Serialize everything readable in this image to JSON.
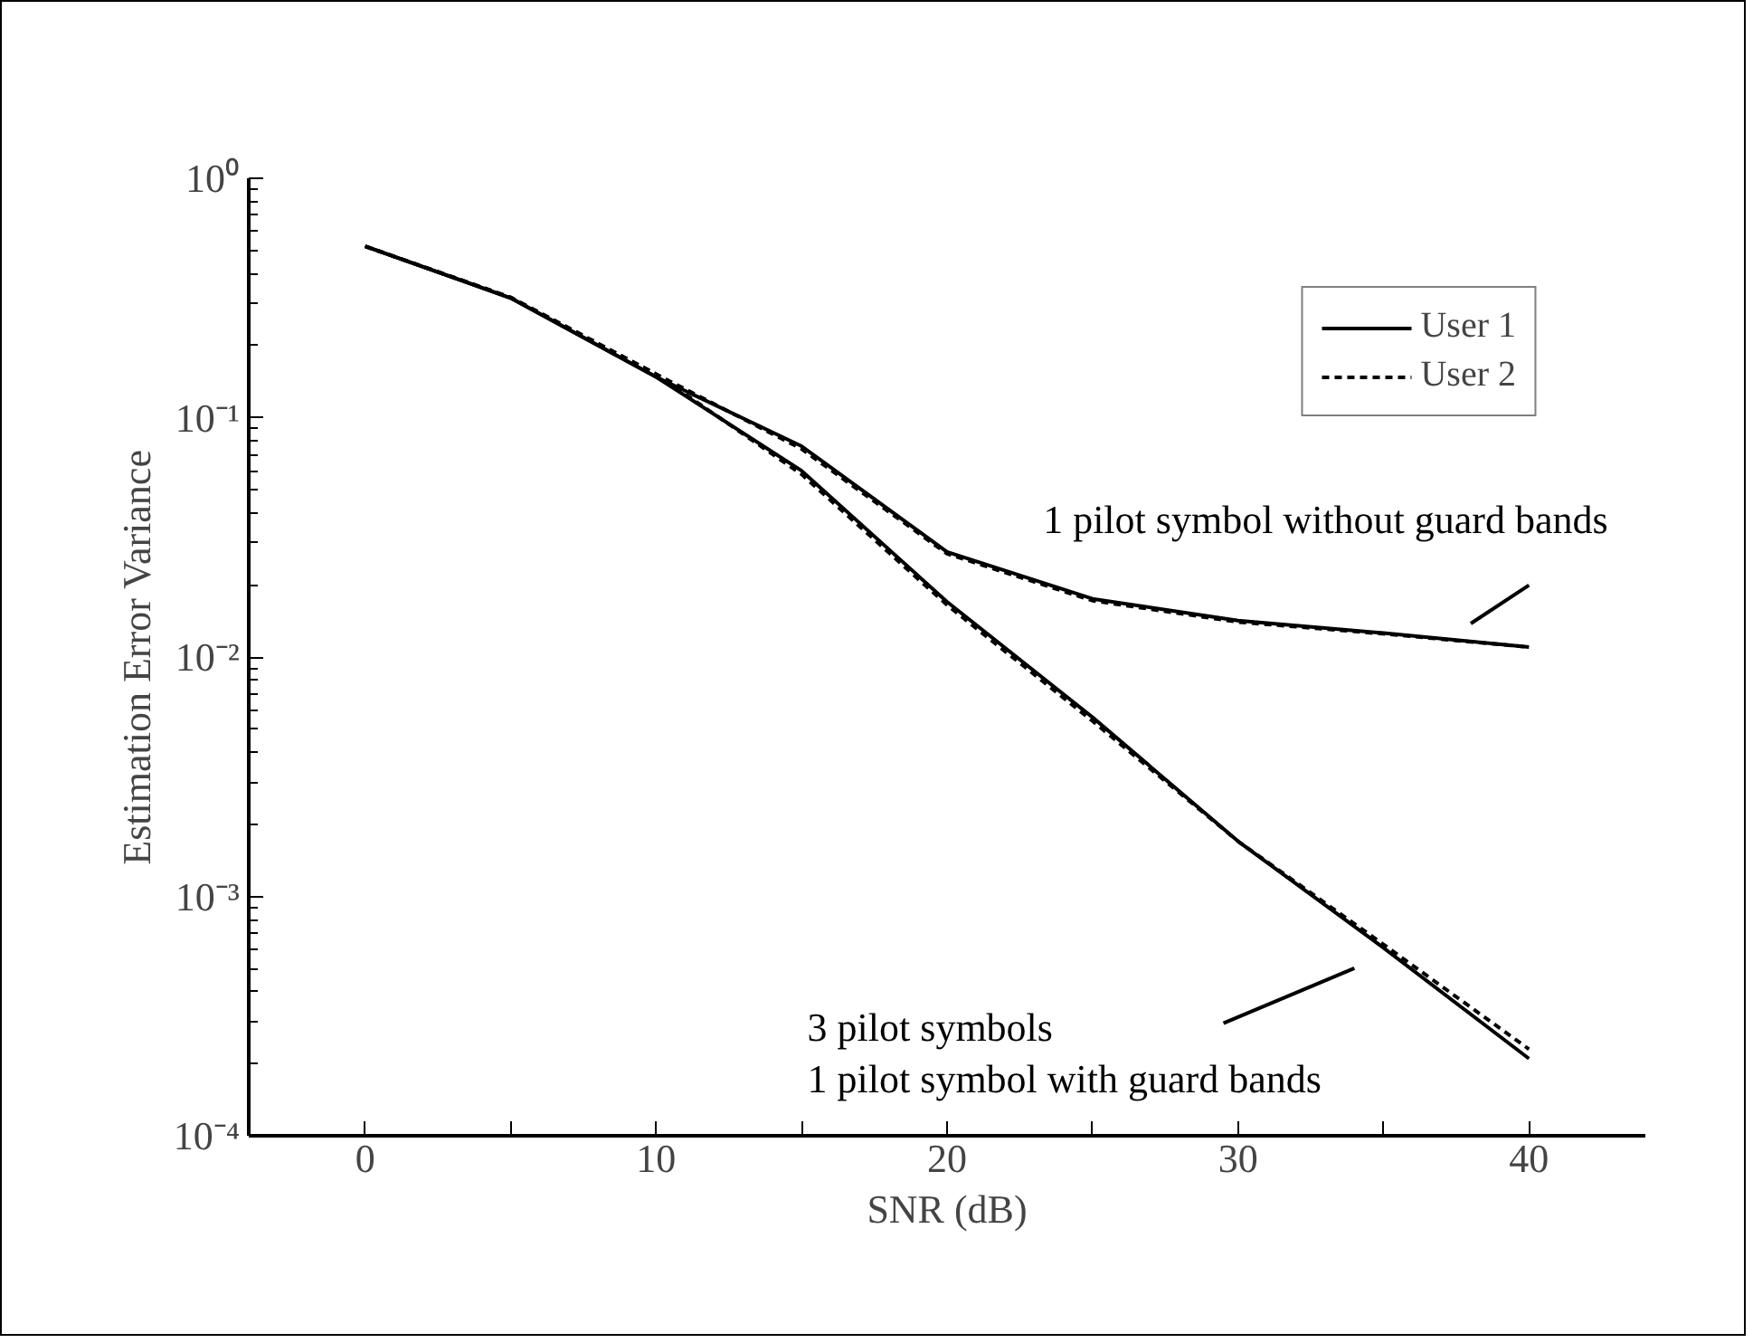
{
  "chart_data": {
    "type": "line",
    "xlabel": "SNR (dB)",
    "ylabel": "Estimation Error Variance",
    "log": "y",
    "x": [
      0,
      5,
      10,
      15,
      20,
      25,
      30,
      35,
      40
    ],
    "series": [
      {
        "name": "User 1",
        "color": "#000000",
        "line_style": "solid",
        "values": [
          0.52,
          0.316,
          0.148,
          0.076,
          0.0275,
          0.0175,
          0.0142,
          0.0126,
          0.011
        ]
      },
      {
        "name": "User 2",
        "color": "#000000",
        "line_style": "dashed",
        "values": [
          0.52,
          0.318,
          0.152,
          0.074,
          0.027,
          0.0172,
          0.014,
          0.0125,
          0.011
        ]
      },
      {
        "color": "#000000",
        "line_style": "solid",
        "values": [
          0.52,
          0.316,
          0.148,
          0.06,
          0.017,
          0.0056,
          0.0017,
          0.00061,
          0.00021
        ]
      },
      {
        "color": "#000000",
        "line_style": "dashed",
        "values": [
          0.52,
          0.318,
          0.152,
          0.058,
          0.0165,
          0.0054,
          0.0017,
          0.00063,
          0.00023
        ]
      }
    ],
    "xlim": [
      -4,
      44
    ],
    "xticks": [
      0,
      {
        "value": 5,
        "label": null
      },
      10,
      {
        "value": 15,
        "label": null
      },
      20,
      {
        "value": 25,
        "label": null
      },
      30,
      {
        "value": 35,
        "label": null
      },
      40
    ],
    "ylim": [
      0.0001,
      1
    ],
    "yticks": [
      {
        "value": 1,
        "label": "10⁰"
      },
      {
        "value": 0.1,
        "label": "10⁻¹"
      },
      {
        "value": 0.01,
        "label": "10⁻²"
      },
      {
        "value": 0.001,
        "label": "10⁻³"
      },
      {
        "value": 0.0001,
        "label": "10⁻⁴"
      }
    ],
    "grid": false,
    "legend": "top right",
    "marker": "none",
    "annotations": [
      "1 pilot symbol without guard bands",
      "3 pilot symbols\n1 pilot symbol with guard bands"
    ]
  }
}
